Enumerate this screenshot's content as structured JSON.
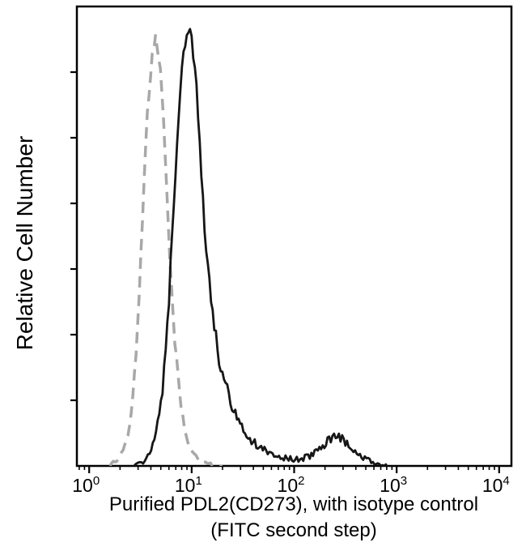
{
  "figure": {
    "y_axis_label": "Relative Cell Number",
    "caption_line1": "Purified PDL2(CD273), with isotype control",
    "caption_line2": "(FITC second step)",
    "background_color": "#ffffff",
    "axis_color": "#000000"
  },
  "chart_data": {
    "type": "line",
    "subtype": "flow-cytometry-histogram-overlay",
    "title": "",
    "xlabel": "Purified PDL2(CD273), with isotype control (FITC second step)",
    "ylabel": "Relative Cell Number",
    "x_scale": "log10",
    "x_range": [
      1,
      10000
    ],
    "ylim": [
      0,
      1.05
    ],
    "grid": false,
    "legend": "none",
    "x_ticks": [
      {
        "base": "10",
        "exp": "0",
        "value": 1
      },
      {
        "base": "10",
        "exp": "1",
        "value": 10
      },
      {
        "base": "10",
        "exp": "2",
        "value": 100
      },
      {
        "base": "10",
        "exp": "3",
        "value": 1000
      },
      {
        "base": "10",
        "exp": "4",
        "value": 10000
      }
    ],
    "y_tick_count": 6,
    "y_tick_labels": [],
    "series": [
      {
        "name": "isotype control (FITC second step)",
        "color": "#a8a8a8",
        "style": "dashed",
        "line_width": 3.5,
        "points": [
          [
            1.6,
            0
          ],
          [
            2.0,
            0.02
          ],
          [
            2.4,
            0.07
          ],
          [
            2.7,
            0.16
          ],
          [
            3.0,
            0.34
          ],
          [
            3.3,
            0.56
          ],
          [
            3.6,
            0.75
          ],
          [
            3.9,
            0.88
          ],
          [
            4.2,
            0.95
          ],
          [
            4.5,
            0.97
          ],
          [
            4.8,
            0.93
          ],
          [
            5.1,
            0.85
          ],
          [
            5.5,
            0.71
          ],
          [
            5.9,
            0.55
          ],
          [
            6.3,
            0.42
          ],
          [
            6.8,
            0.29
          ],
          [
            7.4,
            0.19
          ],
          [
            8.0,
            0.12
          ],
          [
            9.0,
            0.06
          ],
          [
            10.0,
            0.033
          ],
          [
            11.5,
            0.015
          ],
          [
            13.5,
            0.006
          ],
          [
            16.0,
            0.002
          ],
          [
            20.0,
            0
          ]
        ]
      },
      {
        "name": "Purified PDL2(CD273)",
        "color": "#161616",
        "style": "solid",
        "line_width": 2.8,
        "points": [
          [
            2.8,
            0
          ],
          [
            3.5,
            0.015
          ],
          [
            4.2,
            0.05
          ],
          [
            5.0,
            0.13
          ],
          [
            5.6,
            0.26
          ],
          [
            6.2,
            0.44
          ],
          [
            6.8,
            0.62
          ],
          [
            7.4,
            0.78
          ],
          [
            8.0,
            0.9
          ],
          [
            8.6,
            0.97
          ],
          [
            9.2,
            1.0
          ],
          [
            9.8,
            0.99
          ],
          [
            10.5,
            0.93
          ],
          [
            11.3,
            0.83
          ],
          [
            12.2,
            0.7
          ],
          [
            13.2,
            0.57
          ],
          [
            14.5,
            0.45
          ],
          [
            16,
            0.35
          ],
          [
            18,
            0.26
          ],
          [
            20,
            0.205
          ],
          [
            23,
            0.155
          ],
          [
            26,
            0.12
          ],
          [
            30,
            0.09
          ],
          [
            35,
            0.068
          ],
          [
            42,
            0.05
          ],
          [
            50,
            0.038
          ],
          [
            60,
            0.028
          ],
          [
            75,
            0.02
          ],
          [
            90,
            0.016
          ],
          [
            110,
            0.015
          ],
          [
            140,
            0.022
          ],
          [
            170,
            0.035
          ],
          [
            200,
            0.05
          ],
          [
            230,
            0.062
          ],
          [
            260,
            0.066
          ],
          [
            300,
            0.058
          ],
          [
            350,
            0.042
          ],
          [
            420,
            0.026
          ],
          [
            500,
            0.014
          ],
          [
            600,
            0.006
          ],
          [
            700,
            0.002
          ],
          [
            800,
            0
          ]
        ]
      }
    ]
  }
}
